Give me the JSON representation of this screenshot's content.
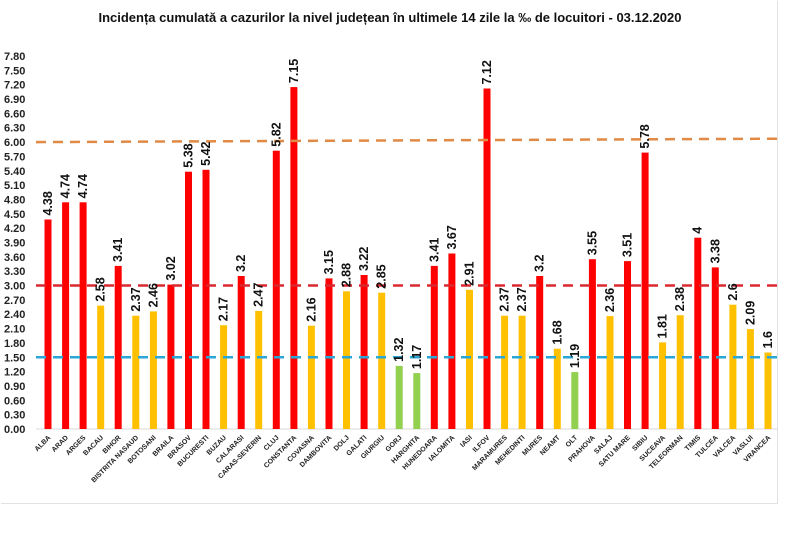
{
  "chart_data": {
    "type": "bar",
    "title": "Incidența cumulată a cazurilor la nivel județean în ultimele 14 zile la ‰ de locuitori - 03.12.2020",
    "xlabel": "",
    "ylabel": "",
    "ylim": [
      0,
      7.8
    ],
    "yticks": [
      "0.00",
      "0.30",
      "0.60",
      "0.90",
      "1.20",
      "1.50",
      "1.80",
      "2.10",
      "2.40",
      "2.70",
      "3.00",
      "3.30",
      "3.60",
      "3.90",
      "4.20",
      "4.50",
      "4.80",
      "5.10",
      "5.40",
      "5.70",
      "6.00",
      "6.30",
      "6.60",
      "6.90",
      "7.20",
      "7.50",
      "7.80"
    ],
    "grid": false,
    "legend": "none",
    "categories": [
      "ALBA",
      "ARAD",
      "ARGES",
      "BACAU",
      "BIHOR",
      "BISTRITA NASAUD",
      "BOTOSANI",
      "BRAILA",
      "BRASOV",
      "BUCURESTI",
      "BUZAU",
      "CALARASI",
      "CARAS-SEVERIN",
      "CLUJ",
      "CONSTANTA",
      "COVASNA",
      "DAMBOVITA",
      "DOLJ",
      "GALATI",
      "GIURGIU",
      "GORJ",
      "HARGHITA",
      "HUNEDOARA",
      "IALOMITA",
      "IASI",
      "ILFOV",
      "MARAMURES",
      "MEHEDINTI",
      "MURES",
      "NEAMT",
      "OLT",
      "PRAHOVA",
      "SALAJ",
      "SATU MARE",
      "SIBIU",
      "SUCEAVA",
      "TELEORMAN",
      "TIMIS",
      "TULCEA",
      "VALCEA",
      "VASLUI",
      "VRANCEA"
    ],
    "values": [
      4.38,
      4.74,
      4.74,
      2.58,
      3.41,
      2.37,
      2.46,
      3.02,
      5.38,
      5.42,
      2.17,
      3.2,
      2.47,
      5.82,
      7.15,
      2.16,
      3.15,
      2.88,
      3.22,
      2.85,
      1.32,
      1.17,
      3.41,
      3.67,
      2.91,
      7.12,
      2.37,
      2.37,
      3.2,
      1.68,
      1.19,
      3.55,
      2.36,
      3.51,
      5.78,
      1.81,
      2.38,
      4,
      3.38,
      2.6,
      2.09,
      1.6
    ],
    "data_labels": [
      "4.38",
      "4.74",
      "4.74",
      "2.58",
      "3.41",
      "2.37",
      "2.46",
      "3.02",
      "5.38",
      "5.42",
      "2.17",
      "3.2",
      "2.47",
      "5.82",
      "7.15",
      "2.16",
      "3.15",
      "2.88",
      "3.22",
      "2.85",
      "1.32",
      "1.17",
      "3.41",
      "3.67",
      "2.91",
      "7.12",
      "2.37",
      "2.37",
      "3.2",
      "1.68",
      "1.19",
      "3.55",
      "2.36",
      "3.51",
      "5.78",
      "1.81",
      "2.38",
      "4",
      "3.38",
      "2.6",
      "2.09",
      "1.6"
    ],
    "color_rules": [
      {
        "label": "> 3.00",
        "color": "#ff0000"
      },
      {
        "label": "1.50 - 3.00",
        "color": "#ffc000"
      },
      {
        "label": "< 1.50",
        "color": "#92d050"
      }
    ],
    "reference_lines": [
      {
        "name": "threshold-6",
        "value": 6.0,
        "value_right": 6.07,
        "color": "#e08a45"
      },
      {
        "name": "threshold-3",
        "value": 3.0,
        "color": "#d9282f"
      },
      {
        "name": "threshold-1.5",
        "value": 1.5,
        "color": "#2aa7d6"
      }
    ]
  }
}
